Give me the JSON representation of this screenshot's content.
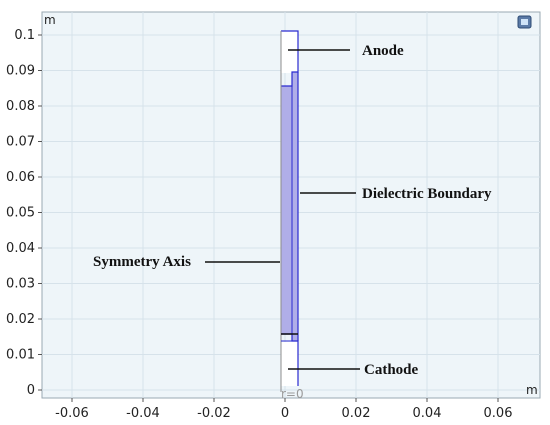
{
  "axes": {
    "unit_x": "m",
    "unit_y": "m",
    "x_ticks": [
      "-0.06",
      "-0.04",
      "-0.02",
      "0",
      "0.02",
      "0.04",
      "0.06"
    ],
    "y_ticks": [
      "0",
      "0.01",
      "0.02",
      "0.03",
      "0.04",
      "0.05",
      "0.06",
      "0.07",
      "0.08",
      "0.09",
      "0.1"
    ],
    "axis_marker": "r=0",
    "grid": true
  },
  "labels": {
    "anode": "Anode",
    "dielectric": "Dielectric Boundary",
    "symmetry": "Symmetry Axis",
    "cathode": "Cathode"
  },
  "colors": {
    "plot_background": "#eef5f9",
    "grid": "#d6e2ea",
    "dielectric_fill": "#b0aee8",
    "outline": "#2a2ad0"
  },
  "icons": {
    "view_toggle": "cube-view-icon"
  }
}
